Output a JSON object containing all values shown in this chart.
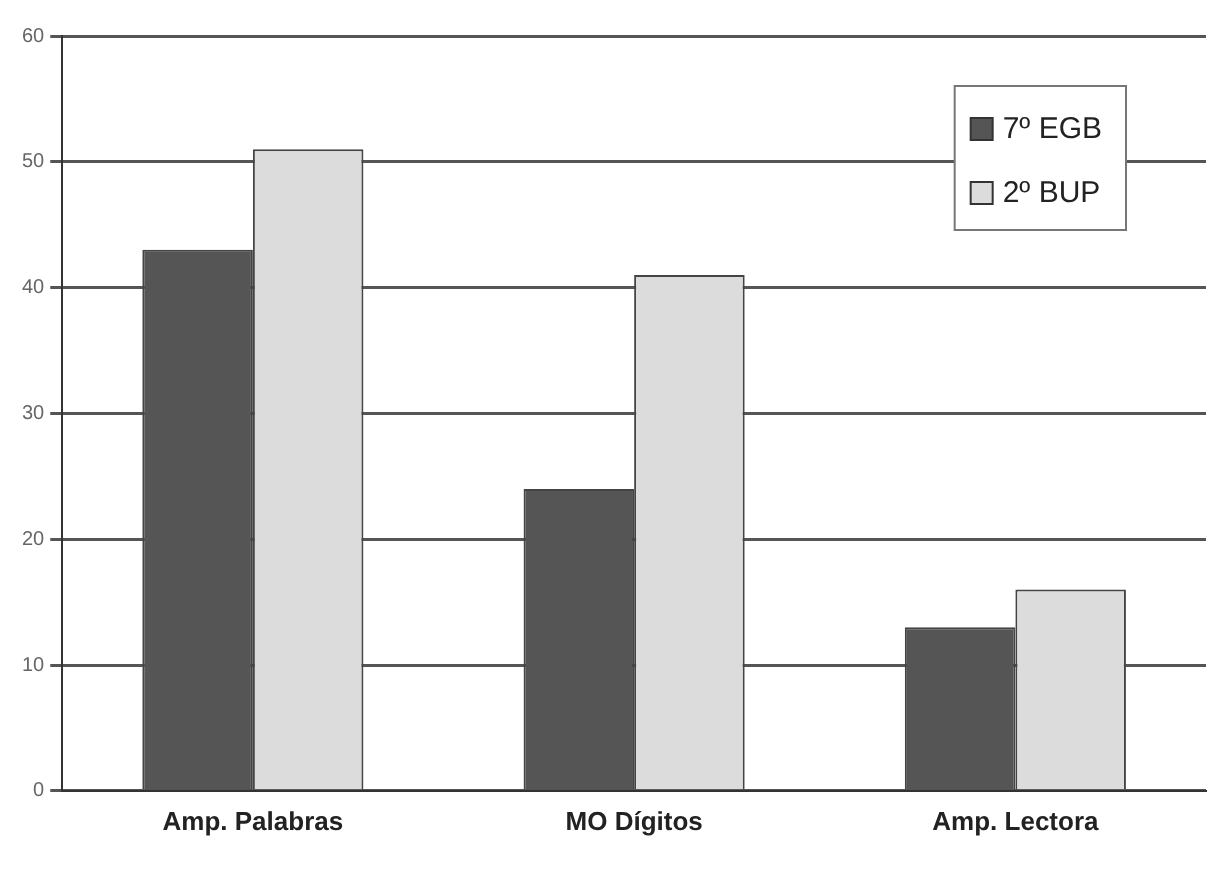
{
  "chart_data": {
    "type": "bar",
    "categories": [
      "Amp. Palabras",
      "MO Dígitos",
      "Amp. Lectora"
    ],
    "series": [
      {
        "name": "7º EGB",
        "color": "#555555",
        "values": [
          43,
          24,
          13
        ]
      },
      {
        "name": "2º BUP",
        "color": "#dcdcdc",
        "values": [
          51,
          41,
          16
        ]
      }
    ],
    "ylim": [
      0,
      60
    ],
    "yticks": [
      0,
      10,
      20,
      30,
      40,
      50,
      60
    ],
    "grid": "y",
    "legend": "top right"
  }
}
